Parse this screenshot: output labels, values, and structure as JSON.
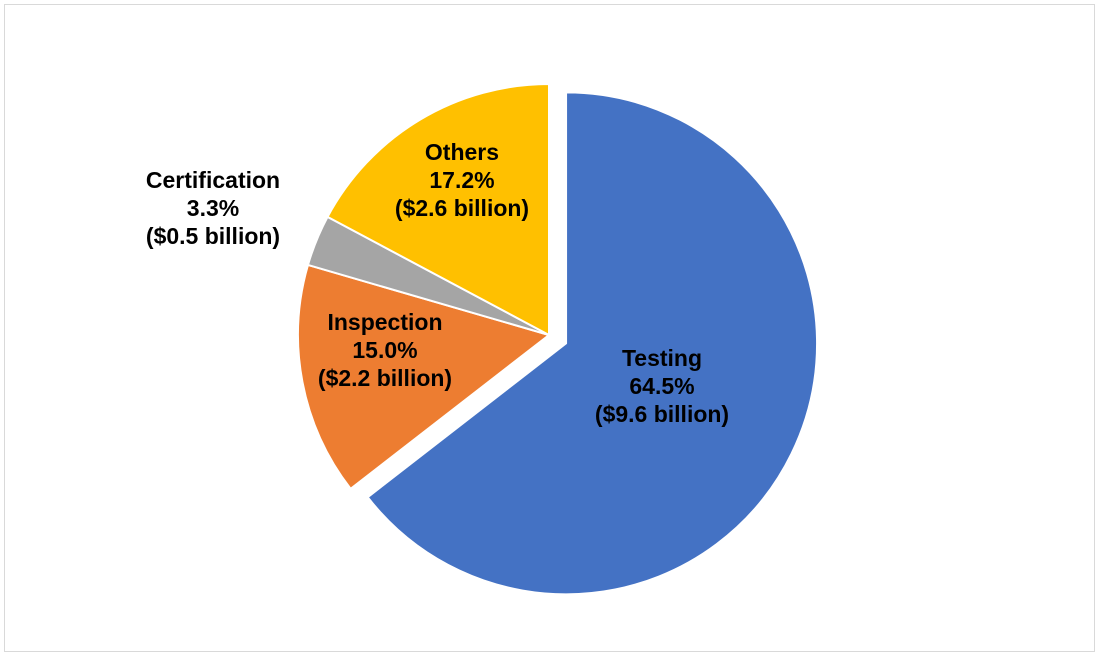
{
  "chart_data": {
    "type": "pie",
    "title": "",
    "slices": [
      {
        "name": "Testing",
        "percent": 64.5,
        "pct_label": "64.5%",
        "value_label": "($9.6 billion)",
        "value": 9.6,
        "color": "#4472c4",
        "exploded": true
      },
      {
        "name": "Inspection",
        "percent": 15.0,
        "pct_label": "15.0%",
        "value_label": "($2.2 billion)",
        "value": 2.2,
        "color": "#ed7d31",
        "exploded": false
      },
      {
        "name": "Certification",
        "percent": 3.3,
        "pct_label": "3.3%",
        "value_label": "($0.5 billion)",
        "value": 0.5,
        "color": "#a5a5a5",
        "exploded": false
      },
      {
        "name": "Others",
        "percent": 17.2,
        "pct_label": "17.2%",
        "value_label": "($2.6 billion)",
        "value": 2.6,
        "color": "#ffc000",
        "exploded": false
      }
    ],
    "start_angle_deg": 0,
    "direction": "clockwise",
    "legend": "none"
  }
}
